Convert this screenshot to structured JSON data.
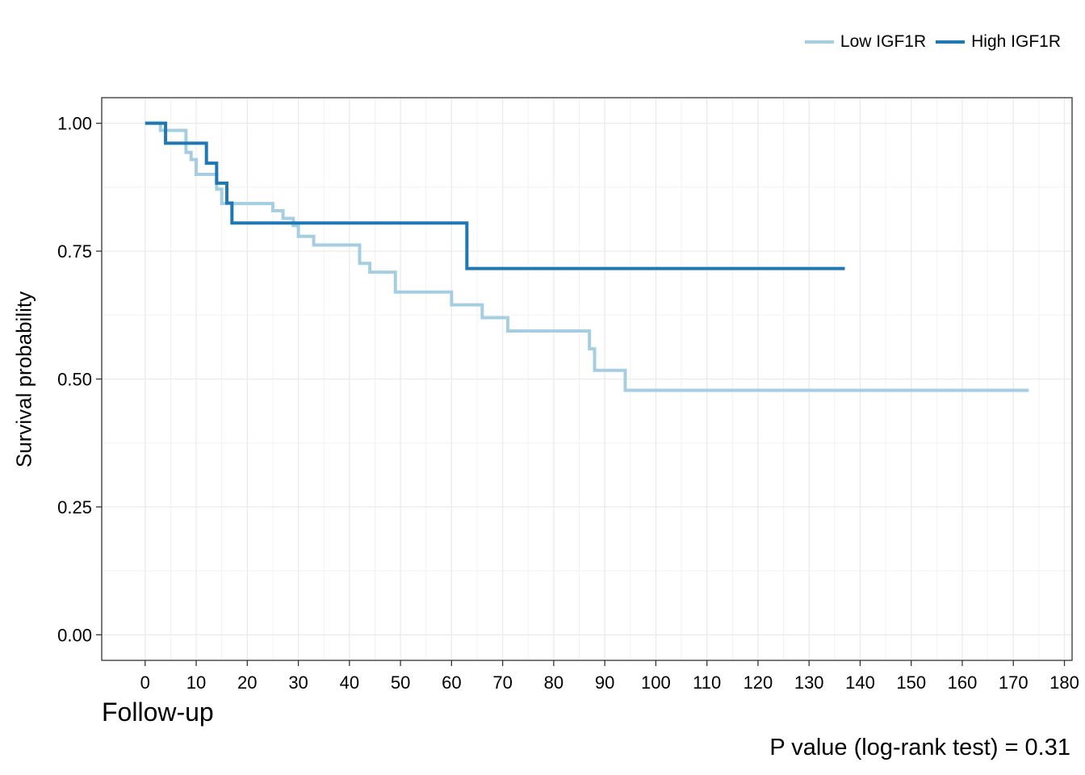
{
  "legend": {
    "low_label": "Low IGF1R",
    "high_label": "High IGF1R",
    "low_color": "#a6cee3",
    "high_color": "#1f78b4"
  },
  "annotation": "P value (log-rank test) = 0.31",
  "chart_data": {
    "type": "line",
    "subtype": "kaplan-meier step",
    "xlabel": "Follow-up",
    "ylabel": "Survival probability",
    "xlim": [
      -8.5,
      181.5
    ],
    "ylim": [
      -0.05,
      1.05
    ],
    "xticks": [
      0,
      10,
      20,
      30,
      40,
      50,
      60,
      70,
      80,
      90,
      100,
      110,
      120,
      130,
      140,
      150,
      160,
      170,
      180
    ],
    "yticks": [
      0,
      0.25,
      0.5,
      0.75,
      1
    ],
    "ytick_labels": [
      "0.00",
      "0.25",
      "0.50",
      "0.75",
      "1.00"
    ],
    "grid": true,
    "legend_position": "top-right",
    "series": [
      {
        "name": "Low IGF1R",
        "color": "#a6cee3",
        "x": [
          0,
          3,
          8,
          9,
          10,
          14,
          15,
          25,
          27,
          29,
          30,
          33,
          42,
          44,
          49,
          60,
          66,
          71,
          87,
          88,
          94,
          173
        ],
        "y": [
          1.0,
          0.986,
          0.943,
          0.929,
          0.9,
          0.871,
          0.843,
          0.829,
          0.814,
          0.8,
          0.779,
          0.762,
          0.726,
          0.709,
          0.67,
          0.645,
          0.62,
          0.594,
          0.559,
          0.517,
          0.478,
          0.478
        ]
      },
      {
        "name": "High IGF1R",
        "color": "#1f78b4",
        "x": [
          0,
          4,
          12,
          14,
          16,
          17,
          63,
          137
        ],
        "y": [
          1.0,
          0.961,
          0.922,
          0.883,
          0.844,
          0.805,
          0.716,
          0.716
        ]
      }
    ]
  }
}
